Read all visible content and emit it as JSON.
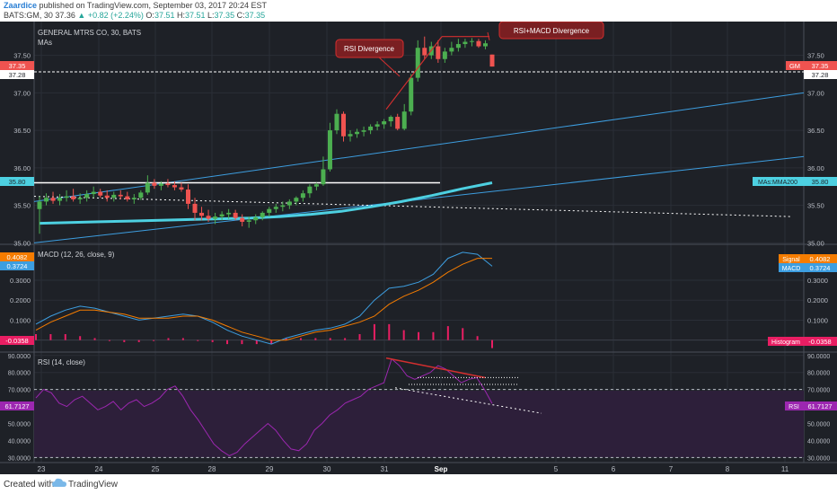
{
  "header": {
    "username": "Zaardice",
    "published": "published on TradingView.com, September 03, 2017 20:24 EST",
    "ticker": "BATS:GM, 30",
    "last": "37.36",
    "change": "+0.82 (+2.24%)",
    "o_label": "O:",
    "o": "37.51",
    "h_label": "H:",
    "h": "37.51",
    "l_label": "L:",
    "l": "37.35",
    "c_label": "C:",
    "c": "37.35"
  },
  "footer": {
    "created": "Created with",
    "brand": "TradingView"
  },
  "colors": {
    "bg_pane": "#1e2127",
    "grid": "#2a2e37",
    "up": "#4caf50",
    "down": "#ef5350",
    "ma": "#4dd0e1",
    "macd": "#3d9ee0",
    "signal": "#f57c00",
    "rsi": "#9c27b0",
    "annot": "#d32f2f"
  },
  "chart_data": [
    {
      "type": "candlestick",
      "title": "GENERAL MTRS CO, 30, BATS",
      "subtitle": "MAs",
      "ylim": [
        34.98,
        37.95
      ],
      "y_ticks": [
        "37.50",
        "37.00",
        "36.50",
        "36.00",
        "35.50",
        "35.00"
      ],
      "x_ticks": [
        "23",
        "24",
        "25",
        "28",
        "29",
        "30",
        "31",
        "Sep",
        "5",
        "6",
        "7",
        "8",
        "11"
      ],
      "last_price_label": "37.35",
      "prev_close_label": "37.28",
      "ma_label_value": "35.80",
      "gm_tag": "GM",
      "ma_tag": "MAs:MMA200",
      "candles": [
        [
          35.45,
          35.62,
          35.12,
          35.55
        ],
        [
          35.55,
          35.66,
          35.5,
          35.6
        ],
        [
          35.6,
          35.68,
          35.52,
          35.56
        ],
        [
          35.56,
          35.65,
          35.5,
          35.6
        ],
        [
          35.6,
          35.7,
          35.55,
          35.62
        ],
        [
          35.62,
          35.72,
          35.55,
          35.58
        ],
        [
          35.58,
          35.66,
          35.52,
          35.6
        ],
        [
          35.6,
          35.7,
          35.55,
          35.65
        ],
        [
          35.65,
          35.75,
          35.6,
          35.68
        ],
        [
          35.68,
          35.72,
          35.6,
          35.63
        ],
        [
          35.63,
          35.7,
          35.55,
          35.6
        ],
        [
          35.6,
          35.68,
          35.55,
          35.64
        ],
        [
          35.64,
          35.7,
          35.58,
          35.62
        ],
        [
          35.62,
          35.68,
          35.55,
          35.58
        ],
        [
          35.58,
          35.65,
          35.52,
          35.6
        ],
        [
          35.6,
          35.7,
          35.57,
          35.67
        ],
        [
          35.67,
          35.9,
          35.64,
          35.8
        ],
        [
          35.8,
          35.85,
          35.72,
          35.76
        ],
        [
          35.76,
          35.82,
          35.7,
          35.79
        ],
        [
          35.79,
          35.85,
          35.74,
          35.77
        ],
        [
          35.77,
          35.82,
          35.7,
          35.74
        ],
        [
          35.74,
          35.8,
          35.68,
          35.71
        ],
        [
          35.71,
          35.78,
          35.45,
          35.52
        ],
        [
          35.52,
          35.6,
          35.3,
          35.4
        ],
        [
          35.4,
          35.48,
          35.3,
          35.36
        ],
        [
          35.36,
          35.44,
          35.28,
          35.32
        ],
        [
          35.32,
          35.4,
          35.25,
          35.35
        ],
        [
          35.35,
          35.42,
          35.3,
          35.38
        ],
        [
          35.38,
          35.45,
          35.32,
          35.4
        ],
        [
          35.4,
          35.44,
          35.3,
          35.33
        ],
        [
          35.33,
          35.38,
          35.22,
          35.28
        ],
        [
          35.28,
          35.35,
          35.2,
          35.3
        ],
        [
          35.3,
          35.38,
          35.25,
          35.34
        ],
        [
          35.34,
          35.42,
          35.3,
          35.4
        ],
        [
          35.4,
          35.48,
          35.35,
          35.45
        ],
        [
          35.45,
          35.52,
          35.4,
          35.48
        ],
        [
          35.48,
          35.55,
          35.42,
          35.5
        ],
        [
          35.5,
          35.58,
          35.45,
          35.55
        ],
        [
          35.55,
          35.62,
          35.5,
          35.6
        ],
        [
          35.6,
          35.7,
          35.55,
          35.66
        ],
        [
          35.66,
          35.78,
          35.6,
          35.75
        ],
        [
          35.75,
          35.8,
          35.7,
          35.78
        ],
        [
          35.78,
          36.15,
          35.76,
          35.98
        ],
        [
          35.98,
          36.6,
          35.95,
          36.5
        ],
        [
          36.5,
          36.78,
          36.45,
          36.72
        ],
        [
          36.72,
          36.75,
          36.35,
          36.42
        ],
        [
          36.42,
          36.5,
          36.35,
          36.45
        ],
        [
          36.45,
          36.52,
          36.4,
          36.48
        ],
        [
          36.48,
          36.55,
          36.42,
          36.5
        ],
        [
          36.5,
          36.58,
          36.45,
          36.55
        ],
        [
          36.55,
          36.62,
          36.5,
          36.58
        ],
        [
          36.58,
          36.65,
          36.52,
          36.62
        ],
        [
          36.62,
          36.7,
          36.55,
          36.68
        ],
        [
          36.68,
          36.72,
          36.5,
          36.52
        ],
        [
          36.52,
          36.85,
          36.5,
          36.75
        ],
        [
          36.75,
          37.25,
          36.7,
          37.2
        ],
        [
          37.2,
          37.7,
          37.15,
          37.6
        ],
        [
          37.6,
          37.75,
          37.45,
          37.5
        ],
        [
          37.5,
          37.68,
          37.45,
          37.62
        ],
        [
          37.62,
          37.7,
          37.4,
          37.45
        ],
        [
          37.45,
          37.6,
          37.4,
          37.55
        ],
        [
          37.55,
          37.68,
          37.5,
          37.6
        ],
        [
          37.6,
          37.72,
          37.55,
          37.65
        ],
        [
          37.65,
          37.72,
          37.6,
          37.68
        ],
        [
          37.68,
          37.73,
          37.62,
          37.69
        ],
        [
          37.69,
          37.72,
          37.6,
          37.62
        ],
        [
          37.62,
          37.7,
          37.58,
          37.66
        ],
        [
          37.51,
          37.51,
          37.35,
          37.35
        ]
      ],
      "ma200": [
        35.26,
        35.27,
        35.28,
        35.29,
        35.3,
        35.31,
        35.32,
        35.33,
        35.35,
        35.38,
        35.42,
        35.48,
        35.55,
        35.63,
        35.72,
        35.8
      ],
      "annotations": [
        "RSI Divergence",
        "RSI+MACD  Divergence"
      ]
    },
    {
      "type": "line",
      "title": "MACD (12, 26, close, 9)",
      "ylim": [
        -0.06,
        0.48
      ],
      "y_ticks": [
        "0.3000",
        "0.2000",
        "0.1000",
        "0.0000"
      ],
      "series": [
        {
          "name": "MACD",
          "value_label": "0.3724",
          "values": [
            0.08,
            0.12,
            0.15,
            0.17,
            0.16,
            0.14,
            0.12,
            0.1,
            0.11,
            0.12,
            0.13,
            0.12,
            0.09,
            0.05,
            0.02,
            0.0,
            -0.02,
            0.01,
            0.03,
            0.05,
            0.06,
            0.08,
            0.12,
            0.2,
            0.26,
            0.27,
            0.29,
            0.33,
            0.41,
            0.44,
            0.43,
            0.37
          ]
        },
        {
          "name": "Signal",
          "value_label": "0.4082",
          "values": [
            0.05,
            0.09,
            0.12,
            0.15,
            0.15,
            0.14,
            0.13,
            0.11,
            0.11,
            0.11,
            0.12,
            0.12,
            0.1,
            0.07,
            0.04,
            0.02,
            0.0,
            0.0,
            0.02,
            0.04,
            0.05,
            0.07,
            0.09,
            0.12,
            0.18,
            0.22,
            0.25,
            0.29,
            0.34,
            0.38,
            0.41,
            0.41
          ]
        },
        {
          "name": "Histogram",
          "value_label": "-0.0358",
          "values": [
            0.03,
            0.03,
            0.03,
            0.02,
            0.01,
            0.0,
            -0.01,
            -0.01,
            0.0,
            0.01,
            0.01,
            0.0,
            -0.01,
            -0.02,
            -0.02,
            -0.02,
            -0.02,
            0.01,
            0.01,
            0.01,
            0.01,
            0.01,
            0.03,
            0.08,
            0.08,
            0.05,
            0.04,
            0.04,
            0.07,
            0.06,
            0.02,
            -0.04
          ]
        }
      ]
    },
    {
      "type": "line",
      "title": "RSI (14, close)",
      "ylim": [
        27,
        92
      ],
      "y_ticks": [
        "90.0000",
        "80.0000",
        "70.0000",
        "60.0000",
        "50.0000",
        "40.0000",
        "30.0000"
      ],
      "bands": [
        70,
        30
      ],
      "series": [
        {
          "name": "RSI",
          "value_label": "61.7127",
          "values": [
            65,
            70,
            68,
            62,
            60,
            64,
            66,
            62,
            58,
            60,
            63,
            58,
            62,
            64,
            60,
            62,
            65,
            70,
            72,
            66,
            58,
            52,
            45,
            38,
            34,
            31,
            33,
            38,
            42,
            46,
            50,
            46,
            40,
            35,
            34,
            38,
            46,
            50,
            55,
            58,
            62,
            64,
            66,
            70,
            72,
            74,
            88,
            84,
            78,
            76,
            78,
            80,
            84,
            82,
            78,
            74,
            76,
            77,
            70,
            61.7
          ]
        }
      ]
    }
  ]
}
